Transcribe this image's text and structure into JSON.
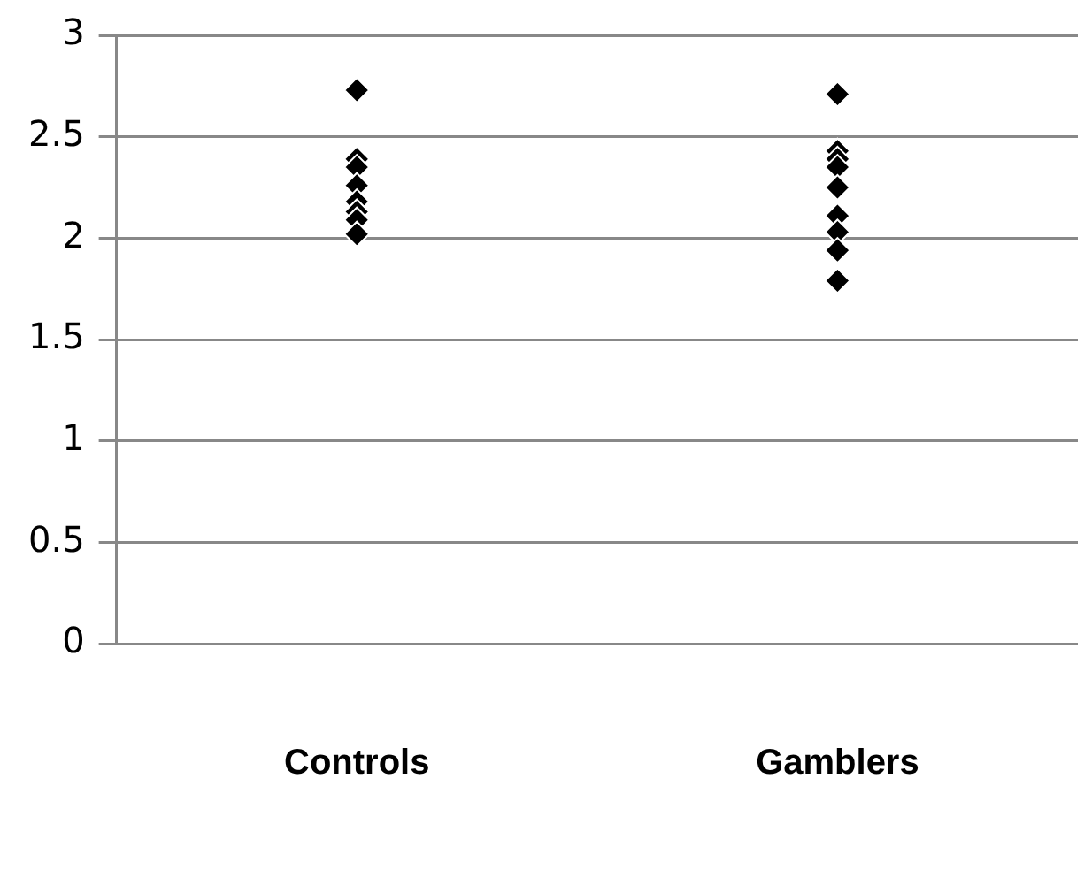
{
  "chart_data": {
    "type": "scatter",
    "categories": [
      "Controls",
      "Gamblers"
    ],
    "series": [
      {
        "color": "#000000",
        "x": [
          "Controls",
          "Controls",
          "Controls",
          "Controls",
          "Controls",
          "Controls",
          "Controls",
          "Controls",
          "Gamblers",
          "Gamblers",
          "Gamblers",
          "Gamblers",
          "Gamblers",
          "Gamblers",
          "Gamblers",
          "Gamblers",
          "Gamblers"
        ],
        "values": [
          2.73,
          2.39,
          2.35,
          2.26,
          2.18,
          2.13,
          2.09,
          2.02,
          2.71,
          2.43,
          2.39,
          2.35,
          2.25,
          2.11,
          2.03,
          1.94,
          1.79
        ]
      }
    ],
    "ylim": [
      0,
      3
    ],
    "yticks": [
      0,
      0.5,
      1,
      1.5,
      2,
      2.5,
      3
    ],
    "grid": "y",
    "legend": false,
    "marker": "diamond"
  }
}
